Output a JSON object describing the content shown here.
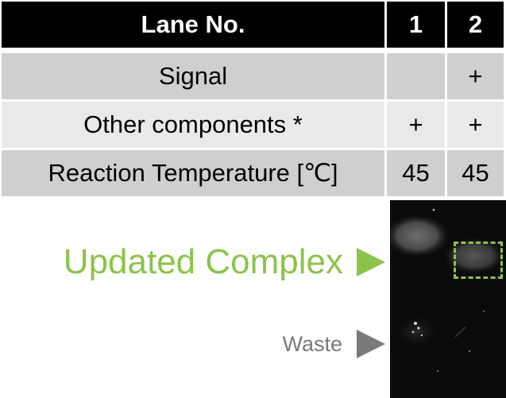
{
  "table": {
    "header": {
      "label": "Lane No.",
      "lane1": "1",
      "lane2": "2"
    },
    "rows": [
      {
        "label": "Signal",
        "lane1": "",
        "lane2": "+"
      },
      {
        "label": "Other components *",
        "lane1": "+",
        "lane2": "+"
      },
      {
        "label": "Reaction Temperature [℃]",
        "lane1": "45",
        "lane2": "45"
      }
    ]
  },
  "gel": {
    "updated_label": "Updated Complex",
    "waste_label": "Waste"
  },
  "colors": {
    "header_bg": "#000000",
    "header_text": "#ffffff",
    "row_dark": "#cfcfcf",
    "row_light": "#e9e9e9",
    "accent_green": "#8cc34a",
    "waste_gray": "#7a7a7a"
  },
  "icons": {
    "updated_arrow": "triangle-right-icon",
    "waste_arrow": "triangle-right-icon"
  }
}
